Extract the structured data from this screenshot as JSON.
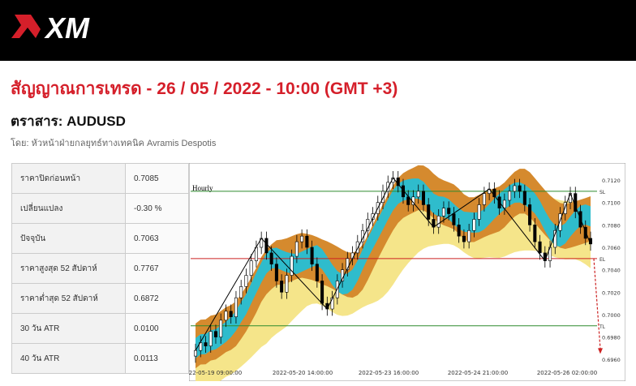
{
  "brand": {
    "logo_text": "XM",
    "logo_color": "#d51f2a"
  },
  "header": {
    "title": "สัญญาณการเทรด - 26 / 05 / 2022 - 10:00 (GMT +3)",
    "instrument": "ตราสาร: AUDUSD",
    "author": "โดย: หัวหน้าฝ่ายกลยุทธ์ทางเทคนิค Avramis Despotis"
  },
  "stats": [
    {
      "label": "ราคาปิดก่อนหน้า",
      "value": "0.7085"
    },
    {
      "label": "เปลี่ยนแปลง",
      "value": "-0.30 %"
    },
    {
      "label": "ปัจจุบัน",
      "value": "0.7063"
    },
    {
      "label": "ราคาสูงสุด 52 สัปดาห์",
      "value": "0.7767"
    },
    {
      "label": "ราคาต่ำสุด 52 สัปดาห์",
      "value": "0.6872"
    },
    {
      "label": "30 วัน ATR",
      "value": "0.0100"
    },
    {
      "label": "40 วัน ATR",
      "value": "0.0113"
    }
  ],
  "chart_data": {
    "type": "candlestick",
    "title": "Hourly",
    "ylim": [
      0.6958,
      0.7128
    ],
    "y_ticks": [
      "0.7120",
      "0.7100",
      "0.7080",
      "0.7060",
      "0.7040",
      "0.7020",
      "0.7000",
      "0.6980",
      "0.6960"
    ],
    "x_ticks": [
      "2022-05-19 09:00:00",
      "2022-05-20 14:00:00",
      "2022-05-23 16:00:00",
      "2022-05-24 21:00:00",
      "2022-05-26 02:00:00"
    ],
    "levels": [
      {
        "name": "SL",
        "value": 0.711,
        "color": "#2e8b2e"
      },
      {
        "name": "EL",
        "value": 0.705,
        "color": "#cc2222"
      },
      {
        "name": "TL",
        "value": 0.699,
        "color": "#2e8b2e"
      }
    ],
    "close_prices": [
      0.6968,
      0.6975,
      0.6972,
      0.6985,
      0.698,
      0.6995,
      0.7003,
      0.6998,
      0.7015,
      0.7025,
      0.7035,
      0.7048,
      0.706,
      0.7068,
      0.7055,
      0.7045,
      0.703,
      0.702,
      0.7035,
      0.7052,
      0.7065,
      0.707,
      0.706,
      0.7045,
      0.703,
      0.701,
      0.7005,
      0.7015,
      0.703,
      0.704,
      0.705,
      0.7055,
      0.7065,
      0.7075,
      0.7085,
      0.709,
      0.71,
      0.711,
      0.7118,
      0.7122,
      0.7115,
      0.7105,
      0.7098,
      0.7105,
      0.711,
      0.7098,
      0.7085,
      0.7078,
      0.7088,
      0.7095,
      0.709,
      0.708,
      0.707,
      0.7065,
      0.7075,
      0.7085,
      0.7098,
      0.7108,
      0.7112,
      0.7105,
      0.7095,
      0.7102,
      0.711,
      0.7115,
      0.711,
      0.7098,
      0.708,
      0.7065,
      0.7055,
      0.7048,
      0.706,
      0.7075,
      0.709,
      0.71,
      0.7108,
      0.7092,
      0.7078,
      0.7068,
      0.7063
    ],
    "target_arrow": {
      "from": 0.705,
      "to": 0.6965,
      "color": "#cc2222"
    }
  }
}
